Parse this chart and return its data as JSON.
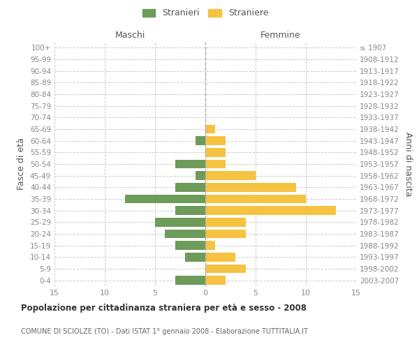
{
  "age_groups": [
    "0-4",
    "5-9",
    "10-14",
    "15-19",
    "20-24",
    "25-29",
    "30-34",
    "35-39",
    "40-44",
    "45-49",
    "50-54",
    "55-59",
    "60-64",
    "65-69",
    "70-74",
    "75-79",
    "80-84",
    "85-89",
    "90-94",
    "95-99",
    "100+"
  ],
  "birth_years": [
    "2003-2007",
    "1998-2002",
    "1993-1997",
    "1988-1992",
    "1983-1987",
    "1978-1982",
    "1973-1977",
    "1968-1972",
    "1963-1967",
    "1958-1962",
    "1953-1957",
    "1948-1952",
    "1943-1947",
    "1938-1942",
    "1933-1937",
    "1928-1932",
    "1923-1927",
    "1918-1922",
    "1913-1917",
    "1908-1912",
    "≤ 1907"
  ],
  "maschi": [
    3,
    0,
    2,
    3,
    4,
    5,
    3,
    8,
    3,
    1,
    3,
    0,
    1,
    0,
    0,
    0,
    0,
    0,
    0,
    0,
    0
  ],
  "femmine": [
    2,
    4,
    3,
    1,
    4,
    4,
    13,
    10,
    9,
    5,
    2,
    2,
    2,
    1,
    0,
    0,
    0,
    0,
    0,
    0,
    0
  ],
  "maschi_color": "#6d9b5a",
  "femmine_color": "#f5c242",
  "xlim": 15,
  "title": "Popolazione per cittadinanza straniera per età e sesso - 2008",
  "subtitle": "COMUNE DI SCIOLZE (TO) - Dati ISTAT 1° gennaio 2008 - Elaborazione TUTTITALIA.IT",
  "ylabel_left": "Fasce di età",
  "ylabel_right": "Anni di nascita",
  "xlabel_maschi": "Maschi",
  "xlabel_femmine": "Femmine",
  "legend_maschi": "Stranieri",
  "legend_femmine": "Straniere",
  "bg_color": "#ffffff",
  "grid_color": "#cccccc",
  "bar_height": 0.75,
  "tick_label_color": "#888888",
  "axis_label_color": "#555555"
}
